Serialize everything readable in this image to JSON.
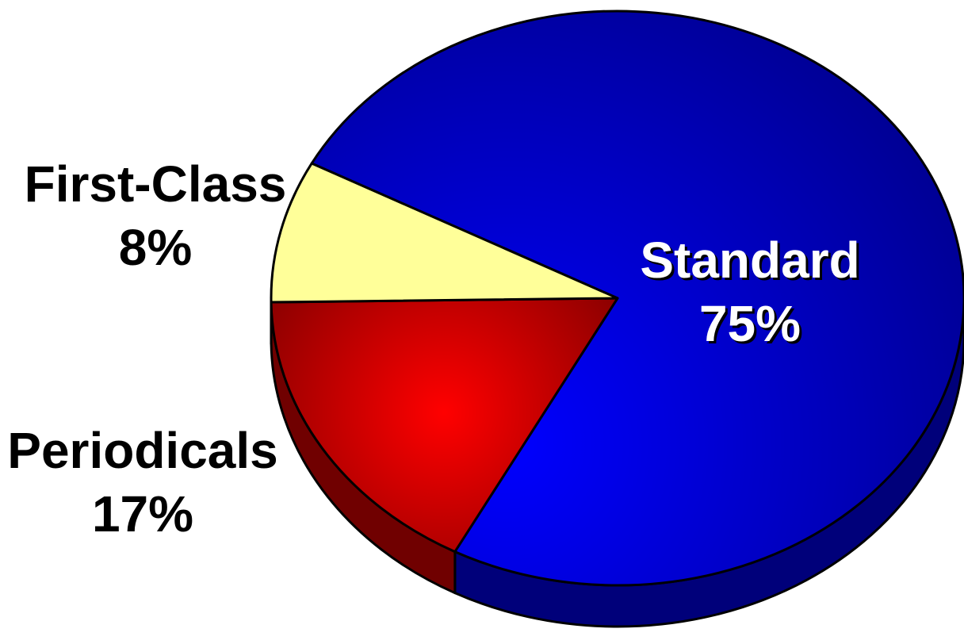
{
  "chart_data": {
    "type": "pie",
    "title": "",
    "slices": [
      {
        "label": "Standard",
        "percent_text": "75%",
        "value": 75,
        "color_top": "#0000ff",
        "color_dark": "#000080",
        "color_side": "#00007a",
        "label_color": "#ffffff"
      },
      {
        "label": "Periodicals",
        "percent_text": "17%",
        "value": 17,
        "color_top": "#ff0000",
        "color_dark": "#7a0000",
        "color_side": "#700000",
        "label_color": "#000000"
      },
      {
        "label": "First-Class",
        "percent_text": "8%",
        "value": 8,
        "color_top": "#ffff99",
        "color_dark": "#ffff99",
        "color_side": "#b3b36b",
        "label_color": "#000000"
      }
    ],
    "three_d": true,
    "legend": "none"
  }
}
